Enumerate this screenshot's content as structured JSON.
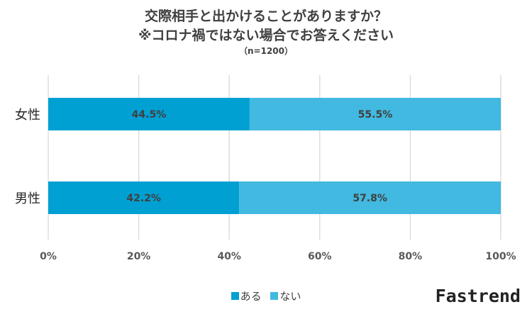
{
  "chart_data": {
    "type": "bar",
    "orientation": "horizontal",
    "stacked": true,
    "percent": true,
    "title_lines": [
      "交際相手と出かけることがありますか？",
      "※コロナ禍ではない場合でお答えください"
    ],
    "subtitle": "（n=1200）",
    "categories": [
      "女性",
      "男性"
    ],
    "series": [
      {
        "name": "ある",
        "values": [
          44.5,
          42.2
        ],
        "color": "#00A0D2",
        "labels": [
          "44.5%",
          "42.2%"
        ]
      },
      {
        "name": "ない",
        "values": [
          55.5,
          57.8
        ],
        "color": "#41B9E0",
        "labels": [
          "55.5%",
          "57.8%"
        ]
      }
    ],
    "xlim": [
      0,
      100
    ],
    "ticks": [
      0,
      20,
      40,
      60,
      80,
      100
    ],
    "tick_labels": [
      "0%",
      "20%",
      "40%",
      "60%",
      "80%",
      "100%"
    ],
    "grid": true,
    "legend_position": "bottom"
  },
  "brand": "Fastrend"
}
